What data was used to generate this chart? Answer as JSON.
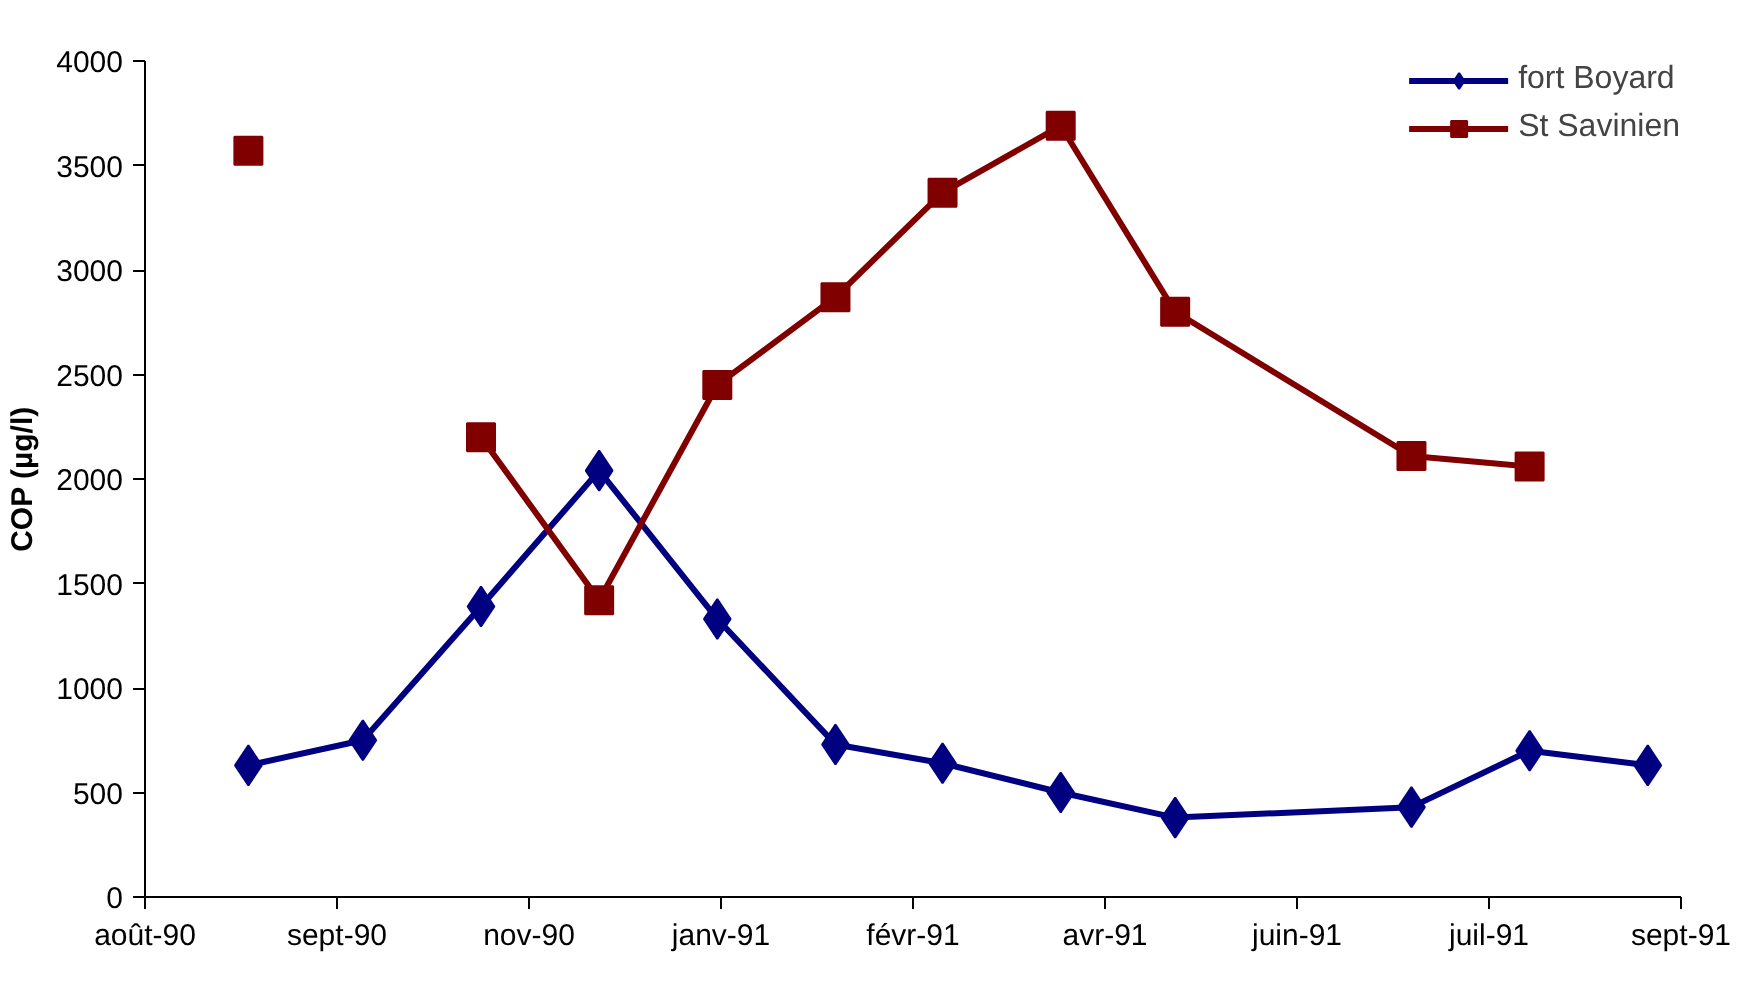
{
  "chart_data": {
    "type": "line",
    "ylabel": "COP (µg/l)",
    "x": [
      "1990-08-29",
      "1990-09-29",
      "1990-10-31",
      "1990-12-02",
      "1991-01-03",
      "1991-02-04",
      "1991-03-05",
      "1991-04-06",
      "1991-05-07",
      "1991-07-10",
      "1991-08-11",
      "1991-09-12"
    ],
    "series": [
      {
        "name": "fort Boyard",
        "color": "#000080",
        "marker": "diamond",
        "values": [
          630,
          750,
          1390,
          2040,
          1330,
          730,
          640,
          500,
          380,
          430,
          700,
          630
        ]
      },
      {
        "name": "St Savinien",
        "color": "#800000",
        "marker": "square",
        "values": [
          3570,
          null,
          2200,
          1420,
          2450,
          2870,
          3370,
          3690,
          2800,
          2110,
          2060,
          null
        ]
      }
    ],
    "xlim": [
      "1990-08-01",
      "1991-09-21"
    ],
    "xticks": [
      {
        "value": "1990-08-01",
        "label": "août-90"
      },
      {
        "value": "1990-09-22",
        "label": "sept-90"
      },
      {
        "value": "1990-11-13",
        "label": "nov-90"
      },
      {
        "value": "1991-01-04",
        "label": "janv-91"
      },
      {
        "value": "1991-02-25",
        "label": "févr-91"
      },
      {
        "value": "1991-04-18",
        "label": "avr-91"
      },
      {
        "value": "1991-06-09",
        "label": "juin-91"
      },
      {
        "value": "1991-07-31",
        "label": "juil-91"
      },
      {
        "value": "1991-09-21",
        "label": "sept-91"
      }
    ],
    "ylim": [
      0,
      4000
    ],
    "yticks": [
      0,
      500,
      1000,
      1500,
      2000,
      2500,
      3000,
      3500,
      4000
    ],
    "grid": false,
    "legend": "top right",
    "line_style": "solid"
  }
}
